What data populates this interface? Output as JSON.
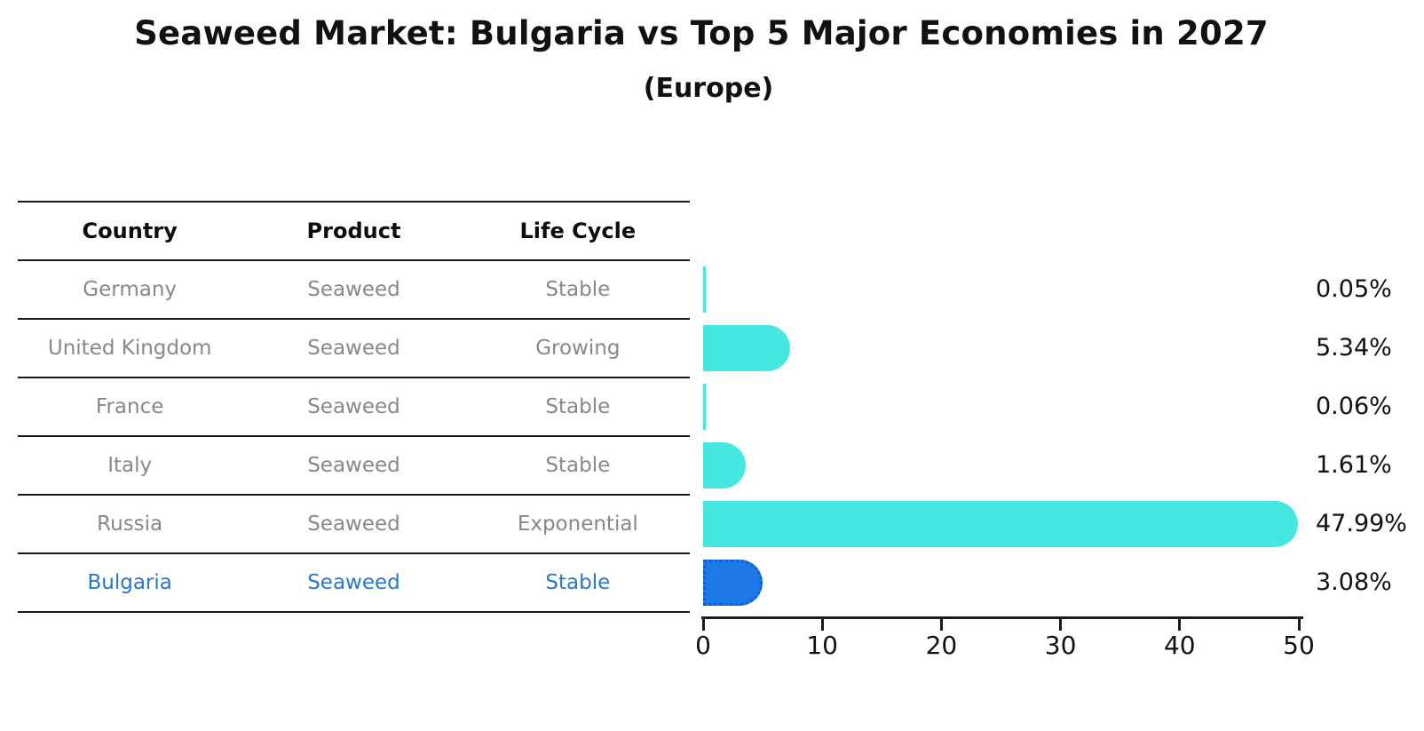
{
  "title": "Seaweed Market: Bulgaria vs Top 5 Major Economies in 2027",
  "subtitle": "(Europe)",
  "table": {
    "headers": [
      "Country",
      "Product",
      "Life Cycle"
    ],
    "rows": [
      {
        "country": "Germany",
        "product": "Seaweed",
        "life_cycle": "Stable",
        "highlight": false
      },
      {
        "country": "United Kingdom",
        "product": "Seaweed",
        "life_cycle": "Growing",
        "highlight": false
      },
      {
        "country": "France",
        "product": "Seaweed",
        "life_cycle": "Stable",
        "highlight": false
      },
      {
        "country": "Italy",
        "product": "Seaweed",
        "life_cycle": "Stable",
        "highlight": false
      },
      {
        "country": "Russia",
        "product": "Seaweed",
        "life_cycle": "Exponential",
        "highlight": false
      },
      {
        "country": "Bulgaria",
        "product": "Seaweed",
        "life_cycle": "Stable",
        "highlight": true
      }
    ]
  },
  "chart_data": {
    "type": "bar",
    "orientation": "horizontal",
    "title": "Seaweed Market: Bulgaria vs Top 5 Major Economies in 2027",
    "subtitle": "(Europe)",
    "categories": [
      "Germany",
      "United Kingdom",
      "France",
      "Italy",
      "Russia",
      "Bulgaria"
    ],
    "values": [
      0.05,
      5.34,
      0.06,
      1.61,
      47.99,
      3.08
    ],
    "value_labels": [
      "0.05%",
      "5.34%",
      "0.06%",
      "1.61%",
      "47.99%",
      "3.08%"
    ],
    "xlim": [
      0,
      50
    ],
    "x_ticks": [
      0,
      10,
      20,
      30,
      40,
      50
    ],
    "grid": false,
    "legend": false,
    "colors": {
      "bar_default": "#45e7e0",
      "bar_highlight": "#1e78e6",
      "highlight_text": "#2878c8",
      "cell_text": "#888888",
      "axis": "#1a1a1a"
    }
  }
}
